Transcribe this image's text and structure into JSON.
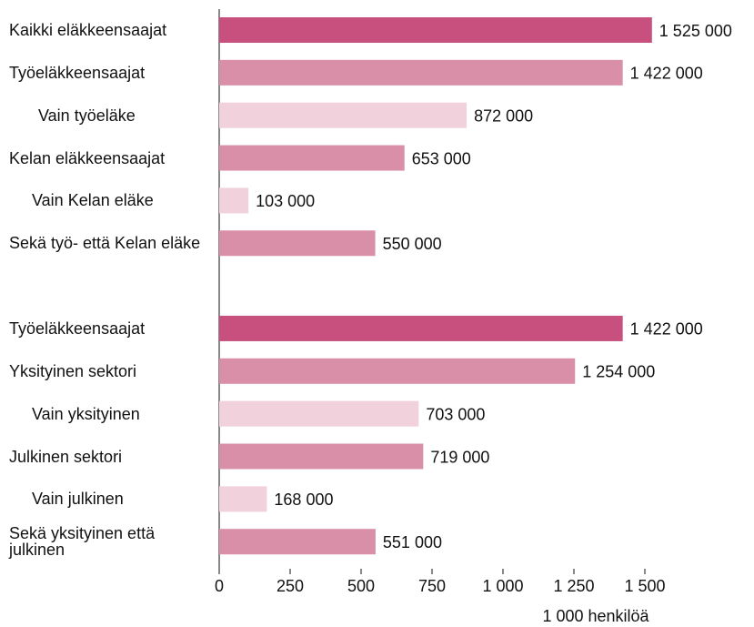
{
  "chart_data": {
    "type": "bar",
    "orientation": "horizontal",
    "categories": [
      "Kaikki eläkkeensaajat",
      "Työeläkkeensaajat",
      "Vain työeläke",
      "Kelan eläkkeensaajat",
      "Vain Kelan eläke",
      "Sekä työ- että Kelan eläke",
      null,
      "Työeläkkeensaajat",
      "Yksityinen sektori",
      "Vain yksityinen",
      "Julkinen sektori",
      "Vain julkinen",
      "Sekä yksityinen että julkinen"
    ],
    "values": [
      1525,
      1422,
      872,
      653,
      103,
      550,
      null,
      1422,
      1254,
      703,
      719,
      168,
      551
    ],
    "value_labels": [
      "1 525 000",
      "1 422 000",
      "872 000",
      "653 000",
      "103 000",
      "550 000",
      null,
      "1 422 000",
      "1 254 000",
      "703 000",
      "719 000",
      "168 000",
      "551 000"
    ],
    "colors": [
      "#c8507e",
      "#d98fa8",
      "#f1d1db",
      "#d98fa8",
      "#f1d1db",
      "#d98fa8",
      null,
      "#c8507e",
      "#d98fa8",
      "#f1d1db",
      "#d98fa8",
      "#f1d1db",
      "#d98fa8"
    ],
    "x_label": "1 000 henkilöä",
    "xlim": [
      0,
      1500
    ],
    "xticks": [
      0,
      250,
      500,
      750,
      {
        "value": 1000,
        "label": "1 000"
      },
      {
        "value": 1250,
        "label": "1 250"
      },
      {
        "value": 1500,
        "label": "1 500"
      }
    ]
  }
}
